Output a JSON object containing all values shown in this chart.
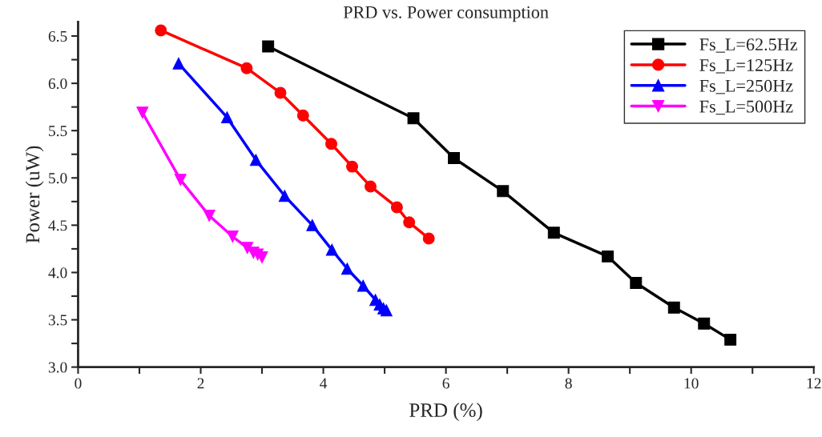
{
  "chart_data": {
    "type": "line",
    "title": "PRD vs. Power consumption",
    "xlabel": "PRD (%)",
    "ylabel": "Power (uW)",
    "xlim": [
      0,
      12
    ],
    "ylim": [
      3.0,
      6.65
    ],
    "xticks": [
      0,
      {
        "value": 1,
        "label": null
      },
      2,
      {
        "value": 3,
        "label": null
      },
      4,
      {
        "value": 5,
        "label": null
      },
      6,
      {
        "value": 7,
        "label": null
      },
      8,
      {
        "value": 9,
        "label": null
      },
      10,
      {
        "value": 11,
        "label": null
      },
      12
    ],
    "yticks": [
      {
        "value": 3.0,
        "label": "3.0"
      },
      {
        "value": 3.25,
        "label": null
      },
      {
        "value": 3.5,
        "label": "3.5"
      },
      {
        "value": 3.75,
        "label": null
      },
      {
        "value": 4.0,
        "label": "4.0"
      },
      {
        "value": 4.25,
        "label": null
      },
      {
        "value": 4.5,
        "label": "4.5"
      },
      {
        "value": 4.75,
        "label": null
      },
      {
        "value": 5.0,
        "label": "5.0"
      },
      {
        "value": 5.25,
        "label": null
      },
      {
        "value": 5.5,
        "label": "5.5"
      },
      {
        "value": 5.75,
        "label": null
      },
      {
        "value": 6.0,
        "label": "6.0"
      },
      {
        "value": 6.25,
        "label": null
      },
      {
        "value": 6.5,
        "label": "6.5"
      }
    ],
    "legend": "top right",
    "grid": false,
    "line_style": "solid",
    "series": [
      {
        "name": "Fs_L=62.5Hz",
        "color": "#000000",
        "marker": "square",
        "x": [
          3.1,
          5.47,
          6.13,
          6.93,
          7.76,
          8.64,
          9.1,
          9.72,
          10.21,
          10.64
        ],
        "values": [
          6.39,
          5.63,
          5.21,
          4.86,
          4.42,
          4.17,
          3.89,
          3.63,
          3.46,
          3.29
        ]
      },
      {
        "name": "Fs_L=125Hz",
        "color": "#ff0000",
        "marker": "circle",
        "x": [
          1.35,
          2.75,
          3.3,
          3.67,
          4.13,
          4.47,
          4.77,
          5.2,
          5.4,
          5.72
        ],
        "values": [
          6.56,
          6.16,
          5.9,
          5.66,
          5.36,
          5.12,
          4.91,
          4.69,
          4.53,
          4.36
        ]
      },
      {
        "name": "Fs_L=250Hz",
        "color": "#0000ff",
        "marker": "triangle",
        "x": [
          1.64,
          2.43,
          2.9,
          3.37,
          3.82,
          4.14,
          4.39,
          4.65,
          4.85,
          4.92,
          4.98,
          5.03
        ],
        "values": [
          6.21,
          5.64,
          5.19,
          4.81,
          4.5,
          4.24,
          4.04,
          3.86,
          3.71,
          3.66,
          3.62,
          3.6
        ]
      },
      {
        "name": "Fs_L=500Hz",
        "color": "#ff00ff",
        "marker": "triangle_down",
        "x": [
          1.05,
          1.67,
          2.14,
          2.52,
          2.76,
          2.86,
          2.93,
          3.0
        ],
        "values": [
          5.69,
          4.98,
          4.6,
          4.38,
          4.26,
          4.21,
          4.19,
          4.16
        ]
      }
    ]
  }
}
